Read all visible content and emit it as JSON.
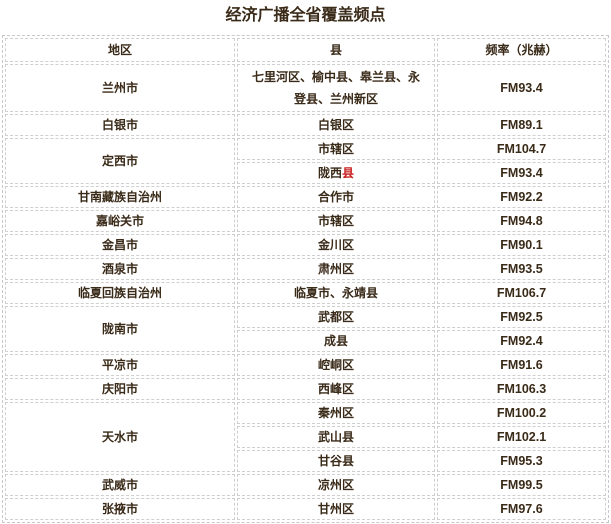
{
  "title": "经济广播全省覆盖频点",
  "table": {
    "headers": [
      "地区",
      "县",
      "频率（兆赫）"
    ],
    "groups": [
      {
        "region": "兰州市",
        "entries": [
          {
            "county": "七里河区、榆中县、皋兰县、永登县、兰州新区",
            "freq": "FM93.4"
          }
        ]
      },
      {
        "region": "白银市",
        "entries": [
          {
            "county": "白银区",
            "freq": "FM89.1"
          }
        ]
      },
      {
        "region": "定西市",
        "entries": [
          {
            "county": "市辖区",
            "freq": "FM104.7"
          },
          {
            "county": "陇西县",
            "freq": "FM93.4",
            "red_suffix": "县"
          }
        ]
      },
      {
        "region": "甘南藏族自治州",
        "entries": [
          {
            "county": "合作市",
            "freq": "FM92.2"
          }
        ]
      },
      {
        "region": "嘉峪关市",
        "entries": [
          {
            "county": "市辖区",
            "freq": "FM94.8"
          }
        ]
      },
      {
        "region": "金昌市",
        "entries": [
          {
            "county": "金川区",
            "freq": "FM90.1"
          }
        ]
      },
      {
        "region": "酒泉市",
        "entries": [
          {
            "county": "肃州区",
            "freq": "FM93.5"
          }
        ]
      },
      {
        "region": "临夏回族自治州",
        "entries": [
          {
            "county": "临夏市、永靖县",
            "freq": "FM106.7"
          }
        ]
      },
      {
        "region": "陇南市",
        "entries": [
          {
            "county": "武都区",
            "freq": "FM92.5"
          },
          {
            "county": "成县",
            "freq": "FM92.4"
          }
        ]
      },
      {
        "region": "平凉市",
        "entries": [
          {
            "county": "崆峒区",
            "freq": "FM91.6"
          }
        ]
      },
      {
        "region": "庆阳市",
        "entries": [
          {
            "county": "西峰区",
            "freq": "FM106.3"
          }
        ]
      },
      {
        "region": "天水市",
        "entries": [
          {
            "county": "秦州区",
            "freq": "FM100.2"
          },
          {
            "county": "武山县",
            "freq": "FM102.1"
          },
          {
            "county": "甘谷县",
            "freq": "FM95.3"
          }
        ]
      },
      {
        "region": "武威市",
        "entries": [
          {
            "county": "凉州区",
            "freq": "FM99.5"
          }
        ]
      },
      {
        "region": "张掖市",
        "entries": [
          {
            "county": "甘州区",
            "freq": "FM97.6"
          }
        ]
      }
    ]
  }
}
